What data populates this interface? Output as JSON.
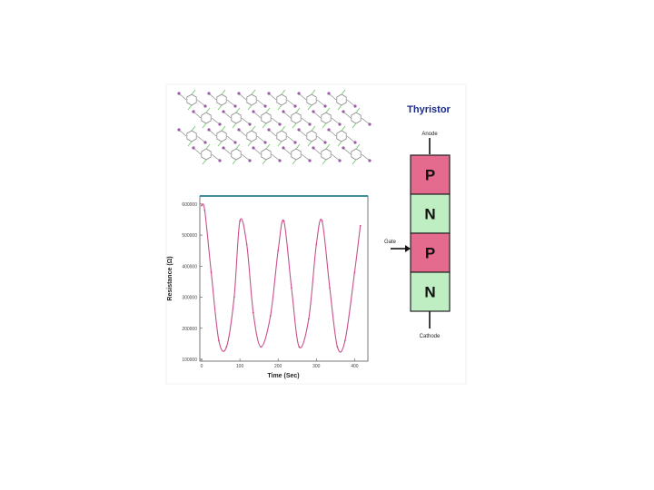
{
  "thyristor": {
    "title": "Thyristor",
    "anode_label": "Anode",
    "gate_label": "Gate",
    "cathode_label": "Cathode",
    "layers": [
      {
        "letter": "P",
        "color": "#e46a8e"
      },
      {
        "letter": "N",
        "color": "#bfeec3"
      },
      {
        "letter": "P",
        "color": "#e46a8e"
      },
      {
        "letter": "N",
        "color": "#bfeec3"
      }
    ]
  },
  "colors": {
    "curve": "#c8508a",
    "frame_top": "#3f8ea0",
    "crystal_bond": "#8a8a8a",
    "crystal_atom_a": "#9b5aa8",
    "crystal_atom_b": "#7cc878"
  },
  "chart_data": {
    "type": "line",
    "xlabel": "Time (Sec)",
    "ylabel": "Resistance (Ω)",
    "xlim": [
      0,
      430
    ],
    "ylim": [
      100000,
      620000
    ],
    "x_ticks": [
      "0",
      "100",
      "200",
      "300",
      "400"
    ],
    "y_ticks": [
      "100000",
      "200000",
      "300000",
      "400000",
      "500000",
      "600000"
    ],
    "grid": false,
    "series": [
      {
        "x": [
          0,
          8,
          25,
          45,
          65,
          85,
          100,
          118,
          135,
          155,
          180,
          200,
          215,
          235,
          255,
          280,
          300,
          315,
          335,
          355,
          375,
          400,
          415
        ],
        "y": [
          595000,
          580000,
          380000,
          160000,
          140000,
          300000,
          545000,
          470000,
          250000,
          140000,
          240000,
          450000,
          545000,
          330000,
          140000,
          230000,
          470000,
          545000,
          330000,
          140000,
          160000,
          380000,
          530000
        ]
      }
    ]
  }
}
